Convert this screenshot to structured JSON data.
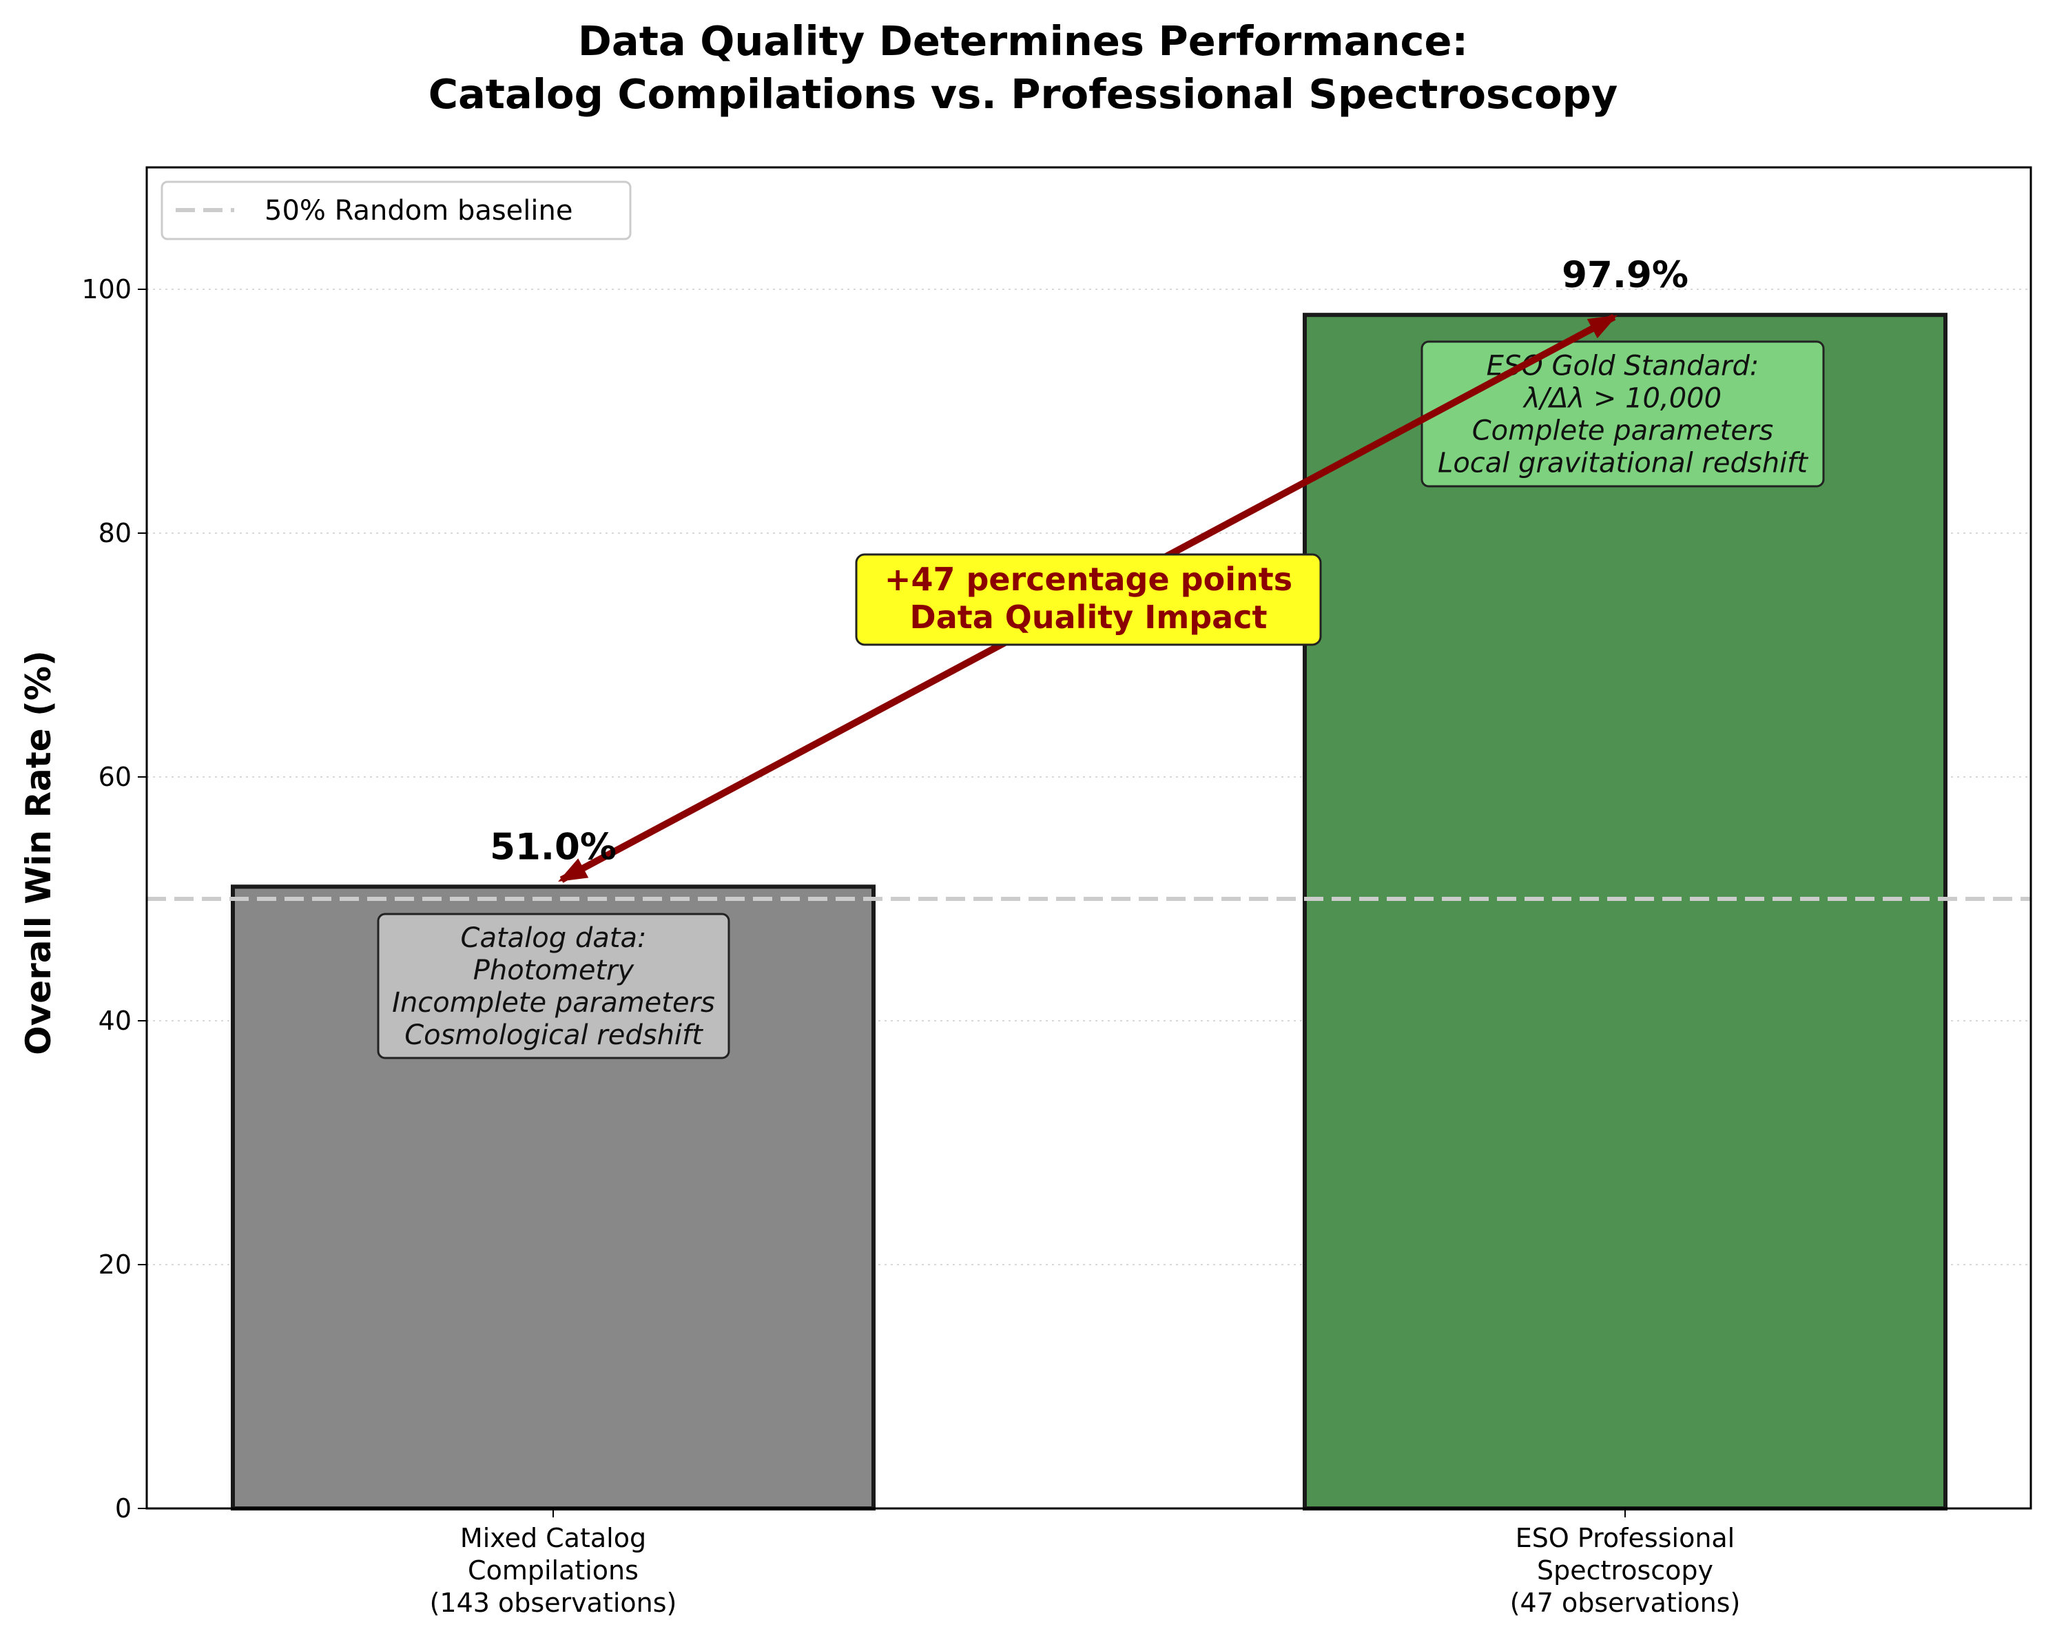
{
  "chart_data": {
    "type": "bar",
    "title": "Data Quality Determines Performance:",
    "subtitle": "Catalog Compilations vs. Professional Spectroscopy",
    "ylabel": "Overall Win Rate (%)",
    "ylim": [
      0,
      110
    ],
    "yticks": [
      "0",
      "20",
      "40",
      "60",
      "80",
      "100"
    ],
    "grid": "horizontal dotted",
    "categories": [
      [
        "Mixed Catalog",
        "Compilations",
        "(143 observations)"
      ],
      [
        "ESO Professional",
        "Spectroscopy",
        "(47 observations)"
      ]
    ],
    "values": [
      51.0,
      97.9
    ],
    "value_labels": [
      "51.0%",
      "97.9%"
    ],
    "colors": [
      "#888888",
      "#4e9150"
    ],
    "notes": [
      {
        "lines": [
          "Catalog data:",
          "Photometry",
          "Incomplete parameters",
          "Cosmological redshift"
        ],
        "background": "#bdbdbd"
      },
      {
        "lines": [
          "ESO Gold Standard:",
          "λ/Δλ > 10,000",
          "Complete parameters",
          "Local gravitational redshift"
        ],
        "background": "#7ed17e"
      }
    ],
    "baseline": {
      "value": 50,
      "label": "50% Random baseline",
      "color": "#cccccc"
    },
    "legend_position": "top-left",
    "annotation": {
      "lines": [
        "+47 percentage points",
        "Data Quality Impact"
      ],
      "background": "#ffff22",
      "text_color": "#8b0000",
      "arrow_color": "#8b0000"
    }
  }
}
